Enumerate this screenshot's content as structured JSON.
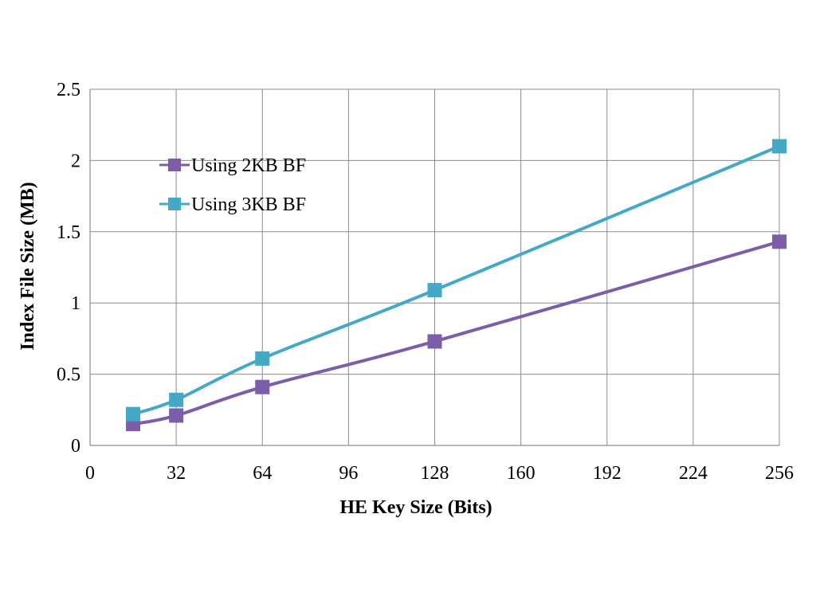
{
  "chart_data": {
    "type": "line",
    "xlabel": "HE Key Size (Bits)",
    "ylabel": "Index File Size (MB)",
    "xlim": [
      0,
      256
    ],
    "ylim": [
      0,
      2.5
    ],
    "xticks": [
      0,
      32,
      64,
      96,
      128,
      160,
      192,
      224,
      256
    ],
    "yticks": [
      0,
      0.5,
      1,
      1.5,
      2,
      2.5
    ],
    "ytick_labels": [
      "0",
      "0.5",
      "1",
      "1.5",
      "2",
      "2.5"
    ],
    "grid": true,
    "legend_position": "top-left",
    "series": [
      {
        "name": "Using 2KB BF",
        "color": "#7b5ea7",
        "marker": "square",
        "x": [
          16,
          32,
          64,
          128,
          256
        ],
        "y": [
          0.15,
          0.21,
          0.41,
          0.73,
          1.43
        ]
      },
      {
        "name": "Using 3KB BF",
        "color": "#45a9c6",
        "marker": "square",
        "x": [
          16,
          32,
          64,
          128,
          256
        ],
        "y": [
          0.22,
          0.32,
          0.61,
          1.09,
          2.1
        ]
      }
    ]
  }
}
